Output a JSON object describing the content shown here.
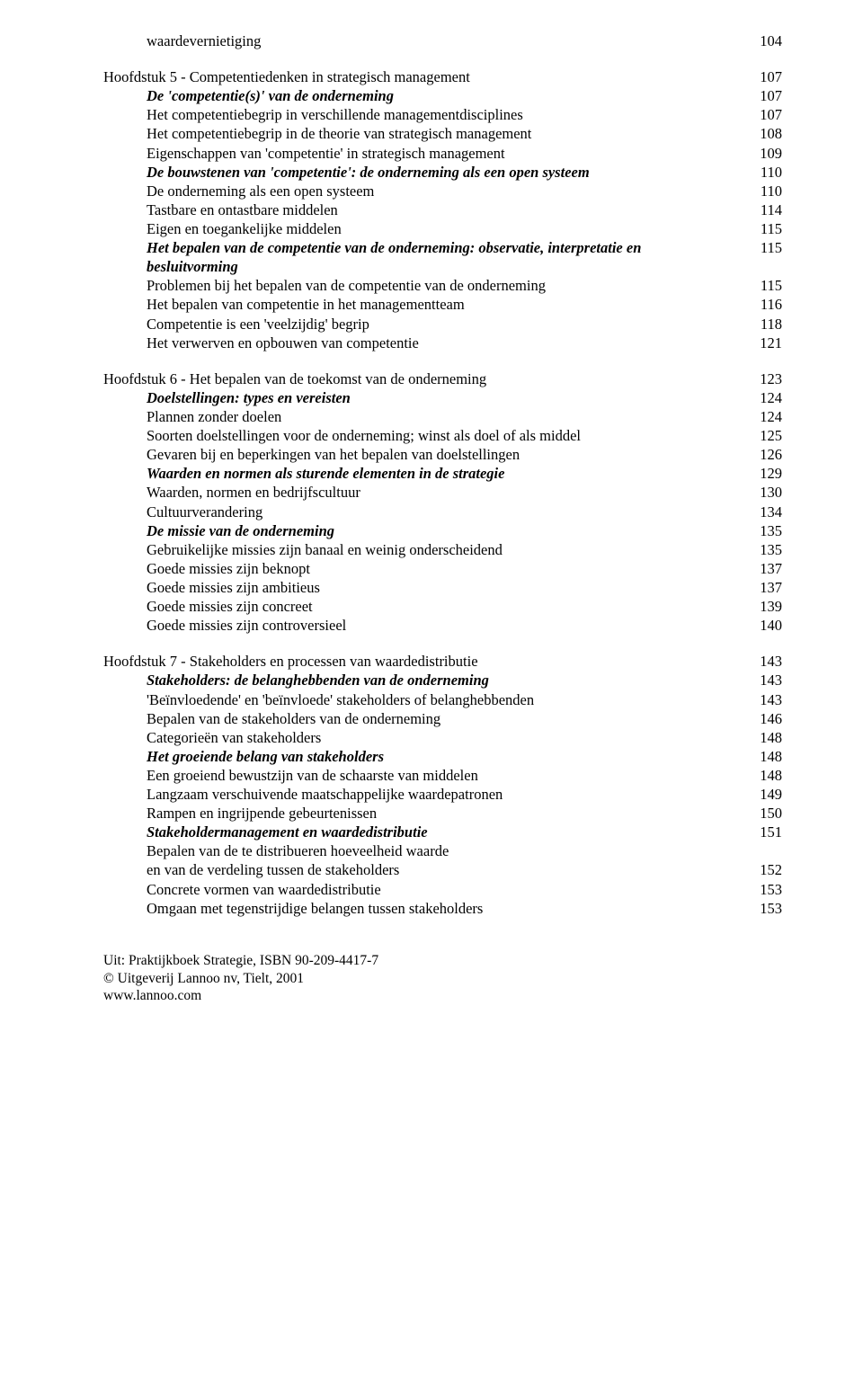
{
  "entries": [
    {
      "text": "waardevernietiging",
      "page": "104",
      "indent": 1,
      "style": "",
      "gapBefore": false
    },
    {
      "text": "Hoofdstuk 5 - Competentiedenken in strategisch management",
      "page": "107",
      "indent": 0,
      "style": "",
      "gapBefore": true
    },
    {
      "text": "De 'competentie(s)' van de onderneming",
      "page": "107",
      "indent": 1,
      "style": "bold-italic",
      "gapBefore": false
    },
    {
      "text": "Het competentiebegrip in verschillende managementdisciplines",
      "page": "107",
      "indent": 1,
      "style": "",
      "gapBefore": false
    },
    {
      "text": "Het competentiebegrip in de theorie van strategisch management",
      "page": "108",
      "indent": 1,
      "style": "",
      "gapBefore": false
    },
    {
      "text": "Eigenschappen van 'competentie' in strategisch management",
      "page": "109",
      "indent": 1,
      "style": "",
      "gapBefore": false
    },
    {
      "text": "De bouwstenen van 'competentie': de onderneming als een open systeem",
      "page": "110",
      "indent": 1,
      "style": "bold-italic",
      "gapBefore": false
    },
    {
      "text": "De onderneming als een open systeem",
      "page": "110",
      "indent": 1,
      "style": "",
      "gapBefore": false
    },
    {
      "text": "Tastbare en ontastbare middelen",
      "page": "114",
      "indent": 1,
      "style": "",
      "gapBefore": false
    },
    {
      "text": "Eigen en toegankelijke middelen",
      "page": "115",
      "indent": 1,
      "style": "",
      "gapBefore": false
    },
    {
      "text": "Het bepalen van de competentie van de onderneming: observatie, interpretatie en besluitvorming",
      "page": "115",
      "indent": 1,
      "style": "bold-italic",
      "gapBefore": false
    },
    {
      "text": "Problemen bij het bepalen van de competentie van de onderneming",
      "page": "115",
      "indent": 1,
      "style": "",
      "gapBefore": false
    },
    {
      "text": "Het bepalen van competentie in het managementteam",
      "page": "116",
      "indent": 1,
      "style": "",
      "gapBefore": false
    },
    {
      "text": "Competentie is een 'veelzijdig' begrip",
      "page": "118",
      "indent": 1,
      "style": "",
      "gapBefore": false
    },
    {
      "text": "Het verwerven en opbouwen van competentie",
      "page": "121",
      "indent": 1,
      "style": "",
      "gapBefore": false
    },
    {
      "text": "Hoofdstuk 6 - Het bepalen van de toekomst van de onderneming",
      "page": "123",
      "indent": 0,
      "style": "",
      "gapBefore": true
    },
    {
      "text": "Doelstellingen: types en vereisten",
      "page": "124",
      "indent": 1,
      "style": "bold-italic",
      "gapBefore": false
    },
    {
      "text": "Plannen zonder doelen",
      "page": "124",
      "indent": 1,
      "style": "",
      "gapBefore": false
    },
    {
      "text": "Soorten doelstellingen voor de onderneming; winst als doel of als middel",
      "page": "125",
      "indent": 1,
      "style": "",
      "gapBefore": false
    },
    {
      "text": "Gevaren bij en beperkingen van het bepalen van doelstellingen",
      "page": "126",
      "indent": 1,
      "style": "",
      "gapBefore": false
    },
    {
      "text": "Waarden en normen als sturende elementen in de strategie",
      "page": "129",
      "indent": 1,
      "style": "bold-italic",
      "gapBefore": false
    },
    {
      "text": "Waarden, normen en bedrijfscultuur",
      "page": "130",
      "indent": 1,
      "style": "",
      "gapBefore": false
    },
    {
      "text": "Cultuurverandering",
      "page": "134",
      "indent": 1,
      "style": "",
      "gapBefore": false
    },
    {
      "text": "De missie van de onderneming",
      "page": "135",
      "indent": 1,
      "style": "bold-italic",
      "gapBefore": false
    },
    {
      "text": "Gebruikelijke missies zijn banaal en weinig onderscheidend",
      "page": "135",
      "indent": 1,
      "style": "",
      "gapBefore": false
    },
    {
      "text": "Goede missies zijn beknopt",
      "page": "137",
      "indent": 1,
      "style": "",
      "gapBefore": false
    },
    {
      "text": "Goede missies zijn ambitieus",
      "page": "137",
      "indent": 1,
      "style": "",
      "gapBefore": false
    },
    {
      "text": "Goede missies zijn concreet",
      "page": "139",
      "indent": 1,
      "style": "",
      "gapBefore": false
    },
    {
      "text": "Goede missies zijn controversieel",
      "page": "140",
      "indent": 1,
      "style": "",
      "gapBefore": false
    },
    {
      "text": "Hoofdstuk 7 - Stakeholders en processen van waardedistributie",
      "page": "143",
      "indent": 0,
      "style": "",
      "gapBefore": true
    },
    {
      "text": "Stakeholders: de belanghebbenden van de onderneming",
      "page": "143",
      "indent": 1,
      "style": "bold-italic",
      "gapBefore": false
    },
    {
      "text": "'Beïnvloedende' en 'beïnvloede' stakeholders of belanghebbenden",
      "page": "143",
      "indent": 1,
      "style": "",
      "gapBefore": false
    },
    {
      "text": "Bepalen van de stakeholders van de onderneming",
      "page": "146",
      "indent": 1,
      "style": "",
      "gapBefore": false
    },
    {
      "text": "Categorieën van stakeholders",
      "page": "148",
      "indent": 1,
      "style": "",
      "gapBefore": false
    },
    {
      "text": "Het groeiende belang van stakeholders",
      "page": "148",
      "indent": 1,
      "style": "bold-italic",
      "gapBefore": false
    },
    {
      "text": "Een groeiend bewustzijn van de schaarste van middelen",
      "page": "148",
      "indent": 1,
      "style": "",
      "gapBefore": false
    },
    {
      "text": "Langzaam verschuivende maatschappelijke waardepatronen",
      "page": "149",
      "indent": 1,
      "style": "",
      "gapBefore": false
    },
    {
      "text": "Rampen en ingrijpende gebeurtenissen",
      "page": "150",
      "indent": 1,
      "style": "",
      "gapBefore": false
    },
    {
      "text": "Stakeholdermanagement en waardedistributie",
      "page": "151",
      "indent": 1,
      "style": "bold-italic",
      "gapBefore": false
    },
    {
      "text": "Bepalen van de te distribueren hoeveelheid waarde",
      "page": "",
      "indent": 1,
      "style": "",
      "gapBefore": false
    },
    {
      "text": "en van de verdeling tussen de stakeholders",
      "page": "152",
      "indent": 1,
      "style": "",
      "gapBefore": false
    },
    {
      "text": "Concrete vormen van waardedistributie",
      "page": "153",
      "indent": 1,
      "style": "",
      "gapBefore": false
    },
    {
      "text": "Omgaan met tegenstrijdige belangen tussen stakeholders",
      "page": "153",
      "indent": 1,
      "style": "",
      "gapBefore": false
    }
  ],
  "footer": {
    "line1": "Uit: Praktijkboek Strategie, ISBN 90-209-4417-7",
    "line2": "© Uitgeverij Lannoo nv, Tielt, 2001",
    "line3": "www.lannoo.com"
  }
}
